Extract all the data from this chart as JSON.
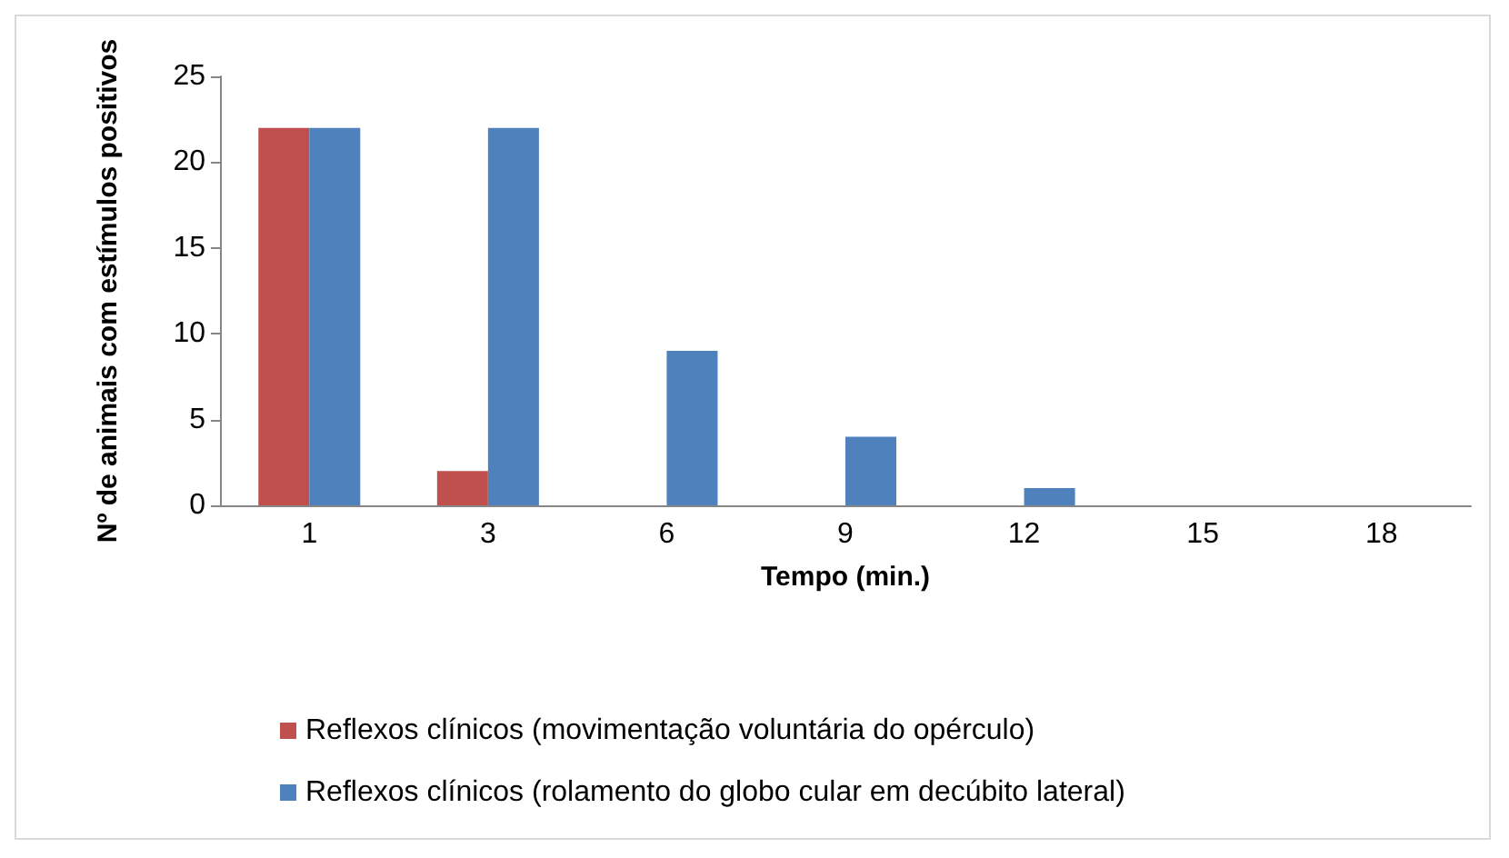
{
  "chart_data": {
    "type": "bar",
    "xlabel": "Tempo (min.)",
    "ylabel": "Nº de animais com estímulos positivos",
    "categories": [
      "1",
      "3",
      "6",
      "9",
      "12",
      "15",
      "18"
    ],
    "series": [
      {
        "name": "Reflexos clínicos (movimentação voluntária do opérculo)",
        "color": "#c0504d",
        "values": [
          22,
          2,
          0,
          0,
          0,
          0,
          0
        ]
      },
      {
        "name": "Reflexos clínicos (rolamento do globo cular em decúbito lateral)",
        "color": "#4f81bd",
        "values": [
          22,
          22,
          9,
          4,
          1,
          0,
          0
        ]
      }
    ],
    "ylim": [
      0,
      25
    ],
    "yticks": [
      0,
      5,
      10,
      15,
      20,
      25
    ],
    "grid": false,
    "legend": "bottom"
  }
}
